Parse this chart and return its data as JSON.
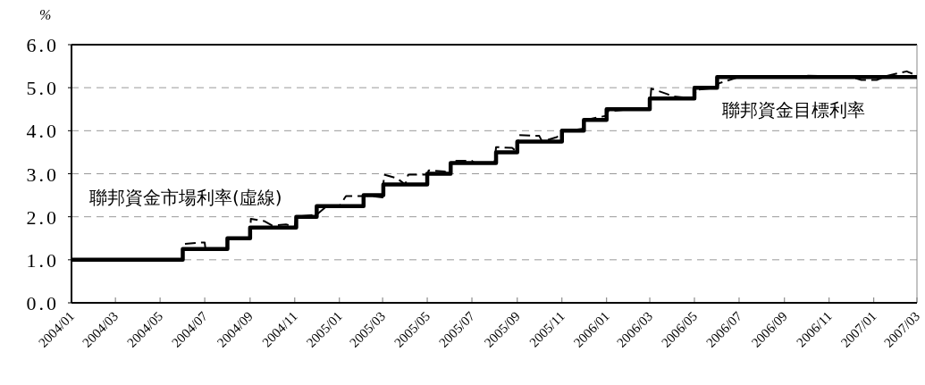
{
  "chart_data": {
    "type": "step",
    "ylabel": "%",
    "xlim": [
      "2004-01",
      "2007-03"
    ],
    "xticks": [
      {
        "value": "2004-01",
        "label": "2004/01"
      },
      {
        "value": "2004-03",
        "label": "2004/03"
      },
      {
        "value": "2004-05",
        "label": "2004/05"
      },
      {
        "value": "2004-07",
        "label": "2004/07"
      },
      {
        "value": "2004-09",
        "label": "2004/09"
      },
      {
        "value": "2004-11",
        "label": "2004/11"
      },
      {
        "value": "2005-01",
        "label": "2005/01"
      },
      {
        "value": "2005-03",
        "label": "2005/03"
      },
      {
        "value": "2005-05",
        "label": "2005/05"
      },
      {
        "value": "2005-07",
        "label": "2005/07"
      },
      {
        "value": "2005-09",
        "label": "2005/09"
      },
      {
        "value": "2005-11",
        "label": "2005/11"
      },
      {
        "value": "2006-01",
        "label": "2006/01"
      },
      {
        "value": "2006-03",
        "label": "2006/03"
      },
      {
        "value": "2006-05",
        "label": "2006/05"
      },
      {
        "value": "2006-07",
        "label": "2006/07"
      },
      {
        "value": "2006-09",
        "label": "2006/09"
      },
      {
        "value": "2006-11",
        "label": "2006/11"
      },
      {
        "value": "2007-01",
        "label": "2007/01"
      },
      {
        "value": "2007-03",
        "label": "2007/03"
      }
    ],
    "ylim": [
      0,
      6
    ],
    "yticks": [
      {
        "value": 0,
        "label": "0.0"
      },
      {
        "value": 1,
        "label": "1.0"
      },
      {
        "value": 2,
        "label": "2.0"
      },
      {
        "value": 3,
        "label": "3.0"
      },
      {
        "value": 4,
        "label": "4.0"
      },
      {
        "value": 5,
        "label": "5.0"
      },
      {
        "value": 6,
        "label": "6.0"
      }
    ],
    "grid": "y",
    "legend": false,
    "series": [
      {
        "name": "聯邦資金市場利率(虛線)",
        "type": "line",
        "line_style": "dashed",
        "color": "#000000",
        "x": [
          "2004-01-01",
          "2004-06-01",
          "2004-06-02",
          "2004-06-25",
          "2004-07-01",
          "2004-07-02",
          "2004-08-01",
          "2004-08-02",
          "2004-09-01",
          "2004-09-02",
          "2004-09-20",
          "2004-10-01",
          "2004-10-20",
          "2004-11-01",
          "2004-11-03",
          "2004-12-01",
          "2004-12-15",
          "2005-01-01",
          "2005-01-10",
          "2005-02-01",
          "2005-02-03",
          "2005-03-01",
          "2005-03-03",
          "2005-03-20",
          "2005-04-01",
          "2005-04-05",
          "2005-05-01",
          "2005-05-03",
          "2005-05-25",
          "2005-06-01",
          "2005-06-03",
          "2005-07-01",
          "2005-07-05",
          "2005-08-01",
          "2005-08-03",
          "2005-08-25",
          "2005-09-01",
          "2005-09-03",
          "2005-10-01",
          "2005-10-05",
          "2005-10-25",
          "2005-11-01",
          "2005-12-01",
          "2005-12-03",
          "2006-01-01",
          "2006-01-03",
          "2006-02-01",
          "2006-03-01",
          "2006-03-03",
          "2006-03-25",
          "2006-04-01",
          "2006-05-01",
          "2006-05-03",
          "2006-06-01",
          "2006-06-03",
          "2006-07-01",
          "2006-09-01",
          "2006-10-01",
          "2006-12-01",
          "2006-12-15",
          "2007-01-05",
          "2007-01-20",
          "2007-02-15",
          "2007-03-01"
        ],
        "values": [
          1.0,
          1.0,
          1.37,
          1.4,
          1.4,
          1.25,
          1.25,
          1.5,
          1.5,
          1.95,
          1.9,
          1.8,
          1.82,
          1.78,
          2.0,
          2.05,
          2.25,
          2.25,
          2.48,
          2.48,
          2.5,
          2.45,
          2.98,
          2.9,
          2.75,
          2.98,
          2.98,
          3.08,
          3.05,
          3.0,
          3.3,
          3.3,
          3.25,
          3.25,
          3.62,
          3.6,
          3.5,
          3.9,
          3.88,
          3.75,
          3.85,
          3.98,
          4.05,
          4.25,
          4.35,
          4.45,
          4.5,
          4.5,
          4.98,
          4.85,
          4.8,
          4.75,
          4.95,
          5.0,
          5.1,
          5.25,
          5.25,
          5.28,
          5.25,
          5.18,
          5.18,
          5.28,
          5.38,
          5.28
        ]
      },
      {
        "name": "聯邦資金目標利率",
        "type": "step",
        "line_style": "solid",
        "color": "#000000",
        "x": [
          "2004-01-01",
          "2004-06-01",
          "2004-08-01",
          "2004-09-01",
          "2004-11-03",
          "2004-12-01",
          "2005-02-03",
          "2005-03-02",
          "2005-05-01",
          "2005-06-02",
          "2005-08-03",
          "2005-09-01",
          "2005-11-01",
          "2005-12-01",
          "2006-01-01",
          "2006-03-01",
          "2006-05-01",
          "2006-06-01",
          "2007-03-01"
        ],
        "values": [
          1.0,
          1.25,
          1.5,
          1.75,
          2.0,
          2.25,
          2.5,
          2.75,
          3.0,
          3.25,
          3.5,
          3.75,
          4.0,
          4.25,
          4.5,
          4.75,
          5.0,
          5.25,
          5.25
        ]
      }
    ]
  }
}
